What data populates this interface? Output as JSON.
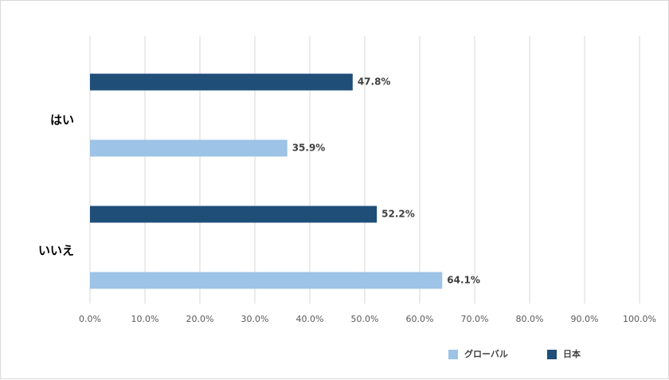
{
  "chart_data": {
    "type": "bar",
    "orientation": "horizontal",
    "title": "",
    "xlabel": "",
    "ylabel": "",
    "categories": [
      "はい",
      "いいえ"
    ],
    "series": [
      {
        "name": "日本",
        "values": [
          47.8,
          52.2
        ],
        "color": "#1f4e79"
      },
      {
        "name": "グローバル",
        "values": [
          35.9,
          64.1
        ],
        "color": "#9dc3e6"
      }
    ],
    "x_ticks": [
      "0.0%",
      "10.0%",
      "20.0%",
      "30.0%",
      "40.0%",
      "50.0%",
      "60.0%",
      "70.0%",
      "80.0%",
      "90.0%",
      "100.0%"
    ],
    "xlim": [
      0,
      100
    ],
    "value_format": "percent_1dp",
    "grid": "vertical",
    "legend": {
      "position": "bottom-right",
      "entries": [
        {
          "name": "グローバル",
          "color": "#9dc3e6"
        },
        {
          "name": "日本",
          "color": "#1f4e79"
        }
      ]
    }
  }
}
